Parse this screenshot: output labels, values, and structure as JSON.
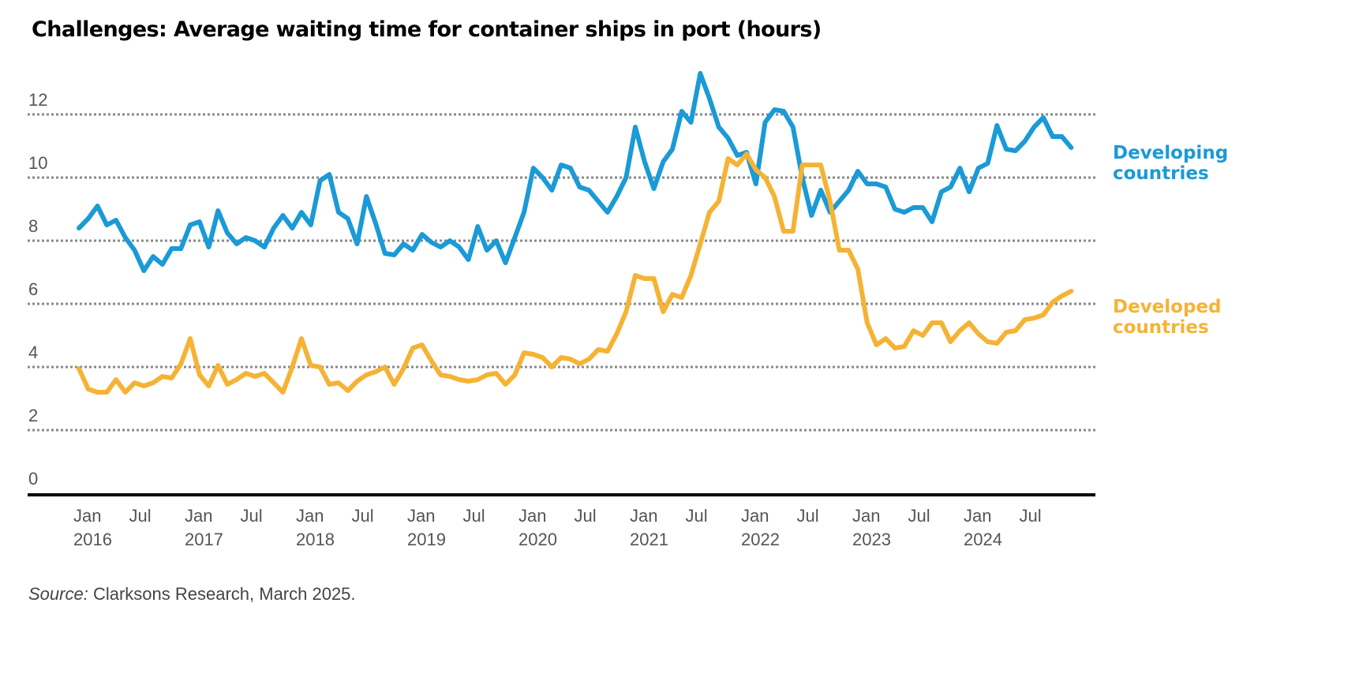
{
  "chart_data": {
    "type": "line",
    "title": "Challenges: Average waiting time for container ships in port (hours)",
    "xlabel": "",
    "ylabel": "",
    "x_start": "2016-01",
    "x_end": "2024-12",
    "x_frequency": "monthly",
    "ylim": [
      0,
      13.5
    ],
    "yticks": [
      0,
      2,
      4,
      6,
      8,
      10,
      12
    ],
    "grid": "horizontal dotted",
    "xtick_labels": [
      {
        "month": "2016-01",
        "line1": "Jan",
        "line2": "2016"
      },
      {
        "month": "2016-07",
        "line1": "Jul",
        "line2": ""
      },
      {
        "month": "2017-01",
        "line1": "Jan",
        "line2": "2017"
      },
      {
        "month": "2017-07",
        "line1": "Jul",
        "line2": ""
      },
      {
        "month": "2018-01",
        "line1": "Jan",
        "line2": "2018"
      },
      {
        "month": "2018-07",
        "line1": "Jul",
        "line2": ""
      },
      {
        "month": "2019-01",
        "line1": "Jan",
        "line2": "2019"
      },
      {
        "month": "2019-07",
        "line1": "Jul",
        "line2": ""
      },
      {
        "month": "2020-01",
        "line1": "Jan",
        "line2": "2020"
      },
      {
        "month": "2020-07",
        "line1": "Jul",
        "line2": ""
      },
      {
        "month": "2021-01",
        "line1": "Jan",
        "line2": "2021"
      },
      {
        "month": "2021-07",
        "line1": "Jul",
        "line2": ""
      },
      {
        "month": "2022-01",
        "line1": "Jan",
        "line2": "2022"
      },
      {
        "month": "2022-07",
        "line1": "Jul",
        "line2": ""
      },
      {
        "month": "2023-01",
        "line1": "Jan",
        "line2": "2023"
      },
      {
        "month": "2023-07",
        "line1": "Jul",
        "line2": ""
      },
      {
        "month": "2024-01",
        "line1": "Jan",
        "line2": "2024"
      },
      {
        "month": "2024-07",
        "line1": "Jul",
        "line2": ""
      }
    ],
    "legend_placement": "right, at line ends",
    "series": [
      {
        "name": "Developing countries",
        "label_line1": "Developing",
        "label_line2": "countries",
        "color": "#1a9ad6",
        "values": [
          8.4,
          8.7,
          9.1,
          8.5,
          8.65,
          8.1,
          7.7,
          7.05,
          7.5,
          7.25,
          7.75,
          7.75,
          8.5,
          8.6,
          7.8,
          8.95,
          8.25,
          7.9,
          8.1,
          8.0,
          7.8,
          8.4,
          8.8,
          8.4,
          8.9,
          8.5,
          9.9,
          10.1,
          8.9,
          8.7,
          7.9,
          9.4,
          8.55,
          7.6,
          7.55,
          7.9,
          7.7,
          8.2,
          7.95,
          7.8,
          8.0,
          7.8,
          7.4,
          8.45,
          7.7,
          8.0,
          7.3,
          8.1,
          8.9,
          10.3,
          10.0,
          9.6,
          10.4,
          10.3,
          9.7,
          9.6,
          9.25,
          8.9,
          9.4,
          10.0,
          11.6,
          10.5,
          9.65,
          10.5,
          10.9,
          12.1,
          11.75,
          13.3,
          12.5,
          11.6,
          11.25,
          10.7,
          10.8,
          9.8,
          11.75,
          12.15,
          12.1,
          11.6,
          10.0,
          8.8,
          9.6,
          8.9,
          9.25,
          9.6,
          10.2,
          9.8,
          9.8,
          9.7,
          9.0,
          8.9,
          9.05,
          9.05,
          8.6,
          9.55,
          9.7,
          10.3,
          9.55,
          10.3,
          10.45,
          11.65,
          10.9,
          10.85,
          11.15,
          11.6,
          11.9,
          11.3,
          11.3,
          10.95
        ]
      },
      {
        "name": "Developed countries",
        "label_line1": "Developed",
        "label_line2": "countries",
        "color": "#f5b335",
        "values": [
          3.95,
          3.3,
          3.2,
          3.2,
          3.6,
          3.2,
          3.5,
          3.4,
          3.5,
          3.7,
          3.65,
          4.1,
          4.9,
          3.75,
          3.4,
          4.05,
          3.45,
          3.6,
          3.8,
          3.7,
          3.8,
          3.5,
          3.2,
          4.0,
          4.9,
          4.05,
          4.0,
          3.45,
          3.5,
          3.25,
          3.55,
          3.75,
          3.85,
          4.0,
          3.45,
          3.95,
          4.6,
          4.7,
          4.2,
          3.75,
          3.7,
          3.6,
          3.55,
          3.6,
          3.75,
          3.8,
          3.45,
          3.75,
          4.45,
          4.4,
          4.3,
          4.0,
          4.3,
          4.25,
          4.1,
          4.25,
          4.55,
          4.5,
          5.05,
          5.75,
          6.9,
          6.8,
          6.8,
          5.75,
          6.3,
          6.2,
          6.9,
          7.9,
          8.9,
          9.25,
          10.6,
          10.4,
          10.75,
          10.25,
          10.0,
          9.4,
          8.3,
          8.3,
          10.4,
          10.4,
          10.4,
          9.25,
          7.7,
          7.7,
          7.1,
          5.4,
          4.7,
          4.9,
          4.6,
          4.65,
          5.15,
          5.0,
          5.4,
          5.4,
          4.8,
          5.15,
          5.4,
          5.05,
          4.8,
          4.75,
          5.1,
          5.15,
          5.5,
          5.55,
          5.65,
          6.05,
          6.25,
          6.4
        ]
      }
    ]
  },
  "source": {
    "label": "Source:",
    "text": " Clarksons Research, March 2025."
  },
  "colors": {
    "grid": "#8a8a8a",
    "axis": "#000000",
    "tick_text": "#555555"
  }
}
